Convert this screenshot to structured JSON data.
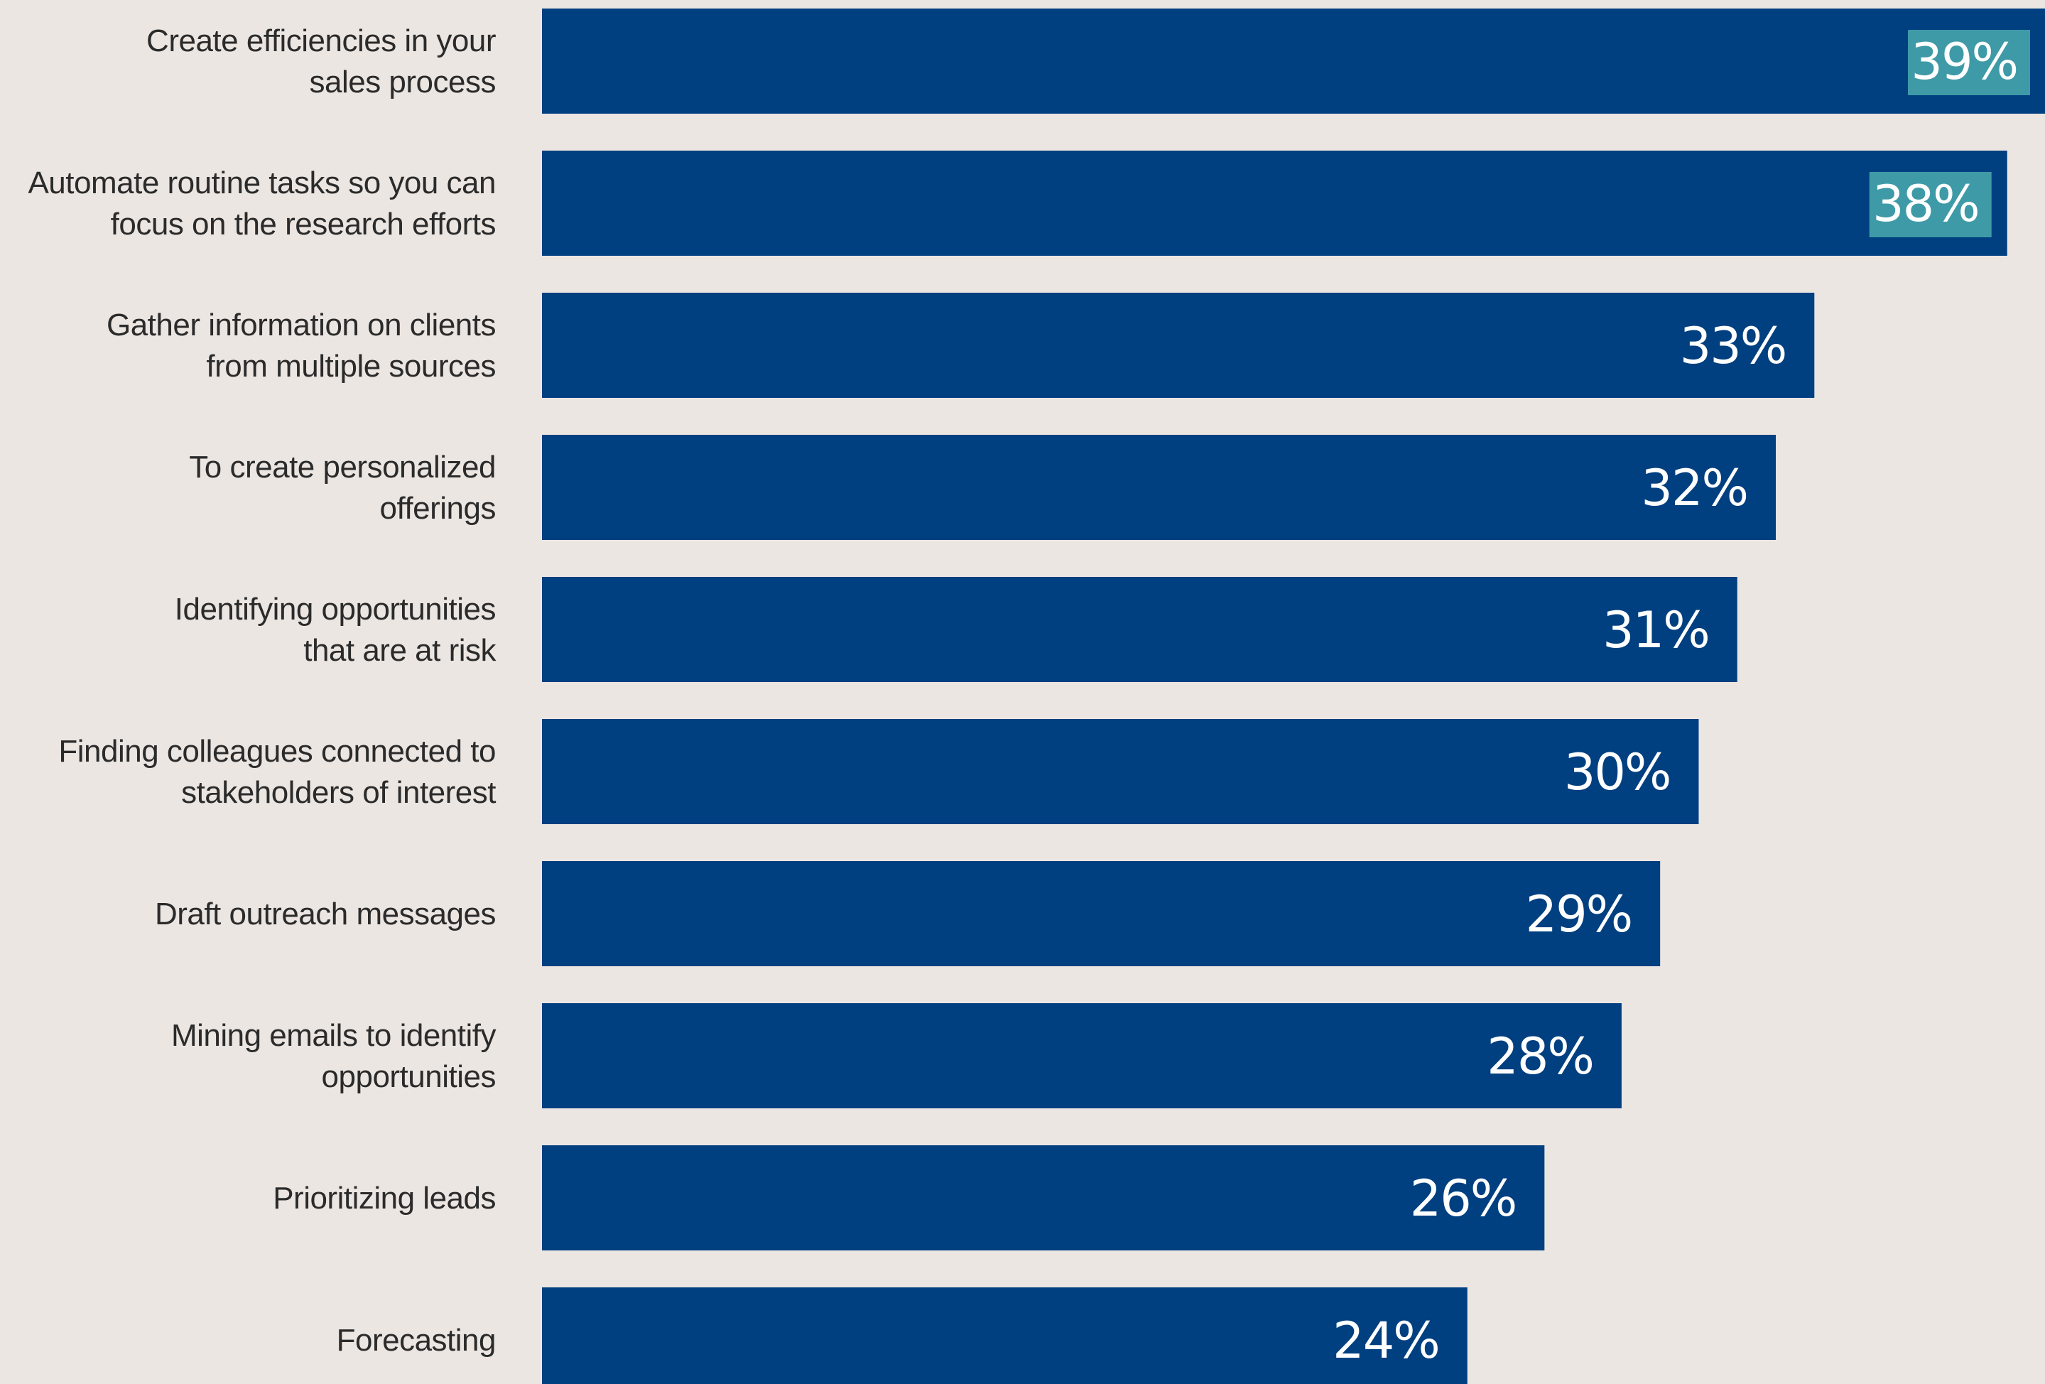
{
  "chart_data": {
    "type": "bar",
    "orientation": "horizontal",
    "categories": [
      [
        "Create efficiencies in your",
        "sales process"
      ],
      [
        "Automate routine tasks so you can",
        "focus on the research efforts"
      ],
      [
        "Gather information on clients",
        "from multiple sources"
      ],
      [
        "To create personalized",
        "offerings"
      ],
      [
        "Identifying opportunities",
        "that are at risk"
      ],
      [
        "Finding colleagues connected to",
        "stakeholders of interest"
      ],
      [
        "Draft outreach messages"
      ],
      [
        "Mining emails to identify",
        "opportunities"
      ],
      [
        "Prioritizing leads"
      ],
      [
        "Forecasting"
      ]
    ],
    "values": [
      39,
      38,
      33,
      32,
      31,
      30,
      29,
      28,
      26,
      24
    ],
    "value_labels": [
      "39%",
      "38%",
      "33%",
      "32%",
      "31%",
      "30%",
      "29%",
      "28%",
      "26%",
      "24%"
    ],
    "highlighted_labels": [
      0,
      1
    ],
    "title": "",
    "xlabel": "",
    "ylabel": "",
    "grid": false,
    "legend": "none"
  },
  "colors": {
    "background": "#ECE6E2",
    "bar": "#003F80",
    "highlight_box": "#3E9AA6",
    "value_text": "#FFFFFF",
    "category_text": "#2B2B2B"
  }
}
